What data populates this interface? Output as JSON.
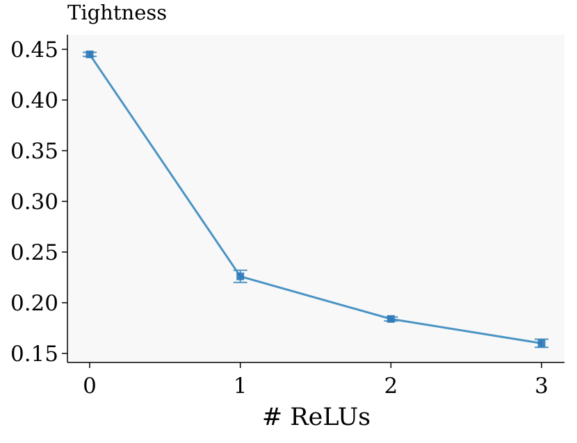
{
  "chart_data": {
    "type": "line",
    "title": "Tightness",
    "xlabel": "# ReLUs",
    "ylabel": "",
    "x": [
      0,
      1,
      2,
      3
    ],
    "xticks": [
      0,
      1,
      2,
      3
    ],
    "xtick_labels": [
      "0",
      "1",
      "2",
      "3"
    ],
    "ylim": [
      0.15,
      0.45
    ],
    "yticks": [
      0.15,
      0.2,
      0.25,
      0.3,
      0.35,
      0.4,
      0.45
    ],
    "ytick_labels": [
      "0.15",
      "0.20",
      "0.25",
      "0.30",
      "0.35",
      "0.40",
      "0.45"
    ],
    "series": [
      {
        "values": [
          0.445,
          0.226,
          0.184,
          0.16
        ],
        "error": [
          0.002,
          0.006,
          0.002,
          0.004
        ],
        "marker": "square",
        "color": "#4a94c4",
        "marker_color": "#2e78b8"
      }
    ],
    "grid": false,
    "background": "#f8f8f8"
  }
}
